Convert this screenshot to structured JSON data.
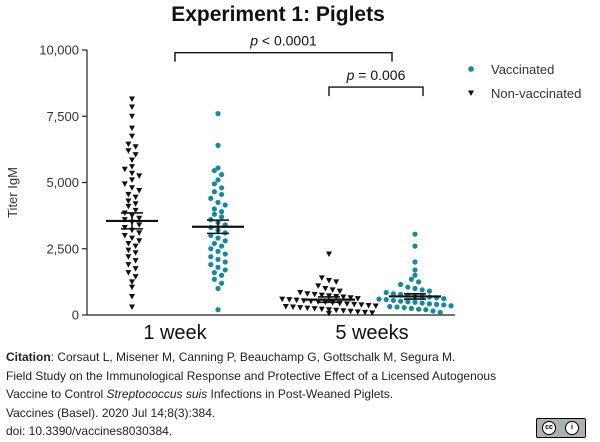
{
  "chart_data": {
    "type": "scatter",
    "title": "Experiment 1: Piglets",
    "ylabel": "Titer IgM",
    "ylim": [
      0,
      10000
    ],
    "yticks": [
      "0",
      "2,500",
      "5,000",
      "7,500",
      "10,000"
    ],
    "ytick_values": [
      0,
      2500,
      5000,
      7500,
      10000
    ],
    "categories": [
      "1 week",
      "5 weeks"
    ],
    "legend_position": "top-right",
    "series": [
      {
        "name": "Non-vaccinated",
        "marker": "triangle-down",
        "color": "#111111",
        "groups": [
          {
            "category": "1 week",
            "mean": 3550,
            "sem_low": 3250,
            "sem_high": 3850,
            "values": [
              8150,
              7850,
              7500,
              7050,
              6750,
              6450,
              6350,
              6200,
              6050,
              5850,
              5600,
              5500,
              5350,
              5250,
              5100,
              4950,
              4800,
              4700,
              4550,
              4450,
              4300,
              4200,
              4100,
              3950,
              3850,
              3750,
              3650,
              3600,
              3500,
              3400,
              3300,
              3200,
              3100,
              3000,
              2900,
              2800,
              2700,
              2600,
              2450,
              2350,
              2200,
              2050,
              1900,
              1750,
              1600,
              1450,
              1250,
              1050,
              700,
              300
            ]
          },
          {
            "category": "5 weeks",
            "mean": 580,
            "sem_low": 480,
            "sem_high": 680,
            "values": [
              2300,
              1400,
              1300,
              1250,
              1100,
              1000,
              950,
              900,
              850,
              800,
              780,
              750,
              720,
              700,
              680,
              650,
              620,
              600,
              580,
              560,
              540,
              520,
              500,
              480,
              460,
              440,
              420,
              400,
              380,
              360,
              340,
              320,
              300,
              280,
              260,
              240,
              220,
              200,
              180,
              160,
              140,
              120,
              100,
              80,
              60
            ]
          }
        ]
      },
      {
        "name": "Vaccinated",
        "marker": "circle",
        "color": "#168a9c",
        "groups": [
          {
            "category": "1 week",
            "mean": 3330,
            "sem_low": 3080,
            "sem_high": 3580,
            "values": [
              7600,
              6400,
              5550,
              5450,
              5300,
              5100,
              4950,
              4800,
              4650,
              4550,
              4400,
              4250,
              4150,
              4000,
              3900,
              3800,
              3700,
              3600,
              3500,
              3400,
              3300,
              3200,
              3100,
              3000,
              2900,
              2800,
              2700,
              2600,
              2500,
              2400,
              2300,
              2200,
              2100,
              2000,
              1900,
              1800,
              1700,
              1600,
              1500,
              1350,
              1200,
              1000,
              200
            ]
          },
          {
            "category": "5 weeks",
            "mean": 700,
            "sem_low": 600,
            "sem_high": 800,
            "values": [
              3050,
              2600,
              2000,
              1700,
              1500,
              1350,
              1250,
              1150,
              1050,
              1000,
              950,
              900,
              850,
              800,
              780,
              750,
              720,
              700,
              680,
              650,
              620,
              600,
              580,
              550,
              520,
              500,
              480,
              450,
              420,
              400,
              380,
              350,
              320,
              300,
              280,
              250,
              220,
              200,
              150,
              100
            ]
          }
        ]
      }
    ],
    "annotations": [
      {
        "type": "significance",
        "prefix": "p",
        "text": " < 0.0001",
        "from": "1 week",
        "to": "5 weeks",
        "y": 9900
      },
      {
        "type": "significance",
        "prefix": "p",
        "text": " = 0.006",
        "from": "5 weeks",
        "within": true,
        "y": 8600
      }
    ]
  },
  "citation": {
    "label": "Citation",
    "line1": ": Corsaut L, Misener M, Canning P, Beauchamp G, Gottschalk M, Segura M.",
    "line2": "Field Study on the Immunological Response and Protective Effect of a Licensed Autogenous",
    "line3_pre": "Vaccine to Control ",
    "line3_italic": "Streptococcus suis",
    "line3_post": " Infections in Post-Weaned Piglets.",
    "line4": "Vaccines (Basel). 2020 Jul 14;8(3):384.",
    "line5": "doi: 10.3390/vaccines8030384."
  },
  "license_badge": {
    "left_symbol": "cc",
    "right_symbol": "i",
    "icon": "cc-by-license-icon"
  }
}
